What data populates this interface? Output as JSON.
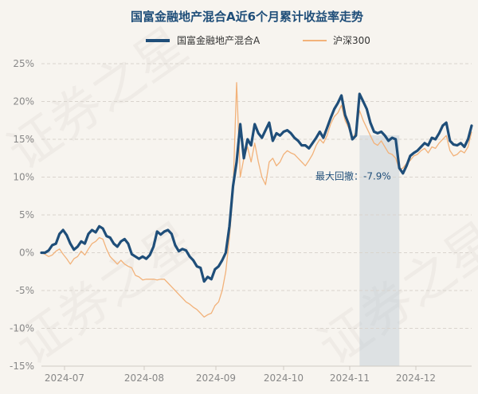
{
  "watermark": "证券之星",
  "chart_data": {
    "type": "line",
    "title": "国富金融地产混合A近6个月累计收益率走势",
    "xlabel": "",
    "ylabel": "",
    "x_ticks": [
      "2024-07",
      "2024-08",
      "2024-09",
      "2024-10",
      "2024-11",
      "2024-12"
    ],
    "y_ticks": [
      "25%",
      "20%",
      "15%",
      "10%",
      "5%",
      "0%",
      "-5%",
      "-10%",
      "-15%"
    ],
    "y_tick_values": [
      25,
      20,
      15,
      10,
      5,
      0,
      -5,
      -10,
      -15
    ],
    "ylim": [
      -15,
      25
    ],
    "grid": "horizontal-dashed",
    "legend_position": "top-center",
    "max_drawdown": {
      "label": "最大回撤：",
      "value_label": "-7.9%",
      "value": -7.9,
      "start_index": 88,
      "end_index": 99
    },
    "series": [
      {
        "name": "国富金融地产混合A",
        "color": "#1f4e79",
        "values": [
          0,
          0,
          0.3,
          1.0,
          1.2,
          2.5,
          3.0,
          2.3,
          1.2,
          0.4,
          0.8,
          1.5,
          1.2,
          2.5,
          3.0,
          2.7,
          3.5,
          3.2,
          2.2,
          2.0,
          1.2,
          0.8,
          1.5,
          1.8,
          1.2,
          -0.2,
          -0.5,
          -0.8,
          -0.5,
          -0.8,
          -0.3,
          0.8,
          2.8,
          2.4,
          2.8,
          3.0,
          2.5,
          1.0,
          0.2,
          0.5,
          0.3,
          -0.5,
          -1.0,
          -1.8,
          -2.0,
          -3.8,
          -3.2,
          -3.5,
          -2.2,
          -1.8,
          -1.0,
          0,
          3.5,
          8.8,
          12.0,
          17.0,
          12.5,
          15.0,
          14.2,
          17.0,
          15.8,
          15.2,
          16.2,
          17.2,
          14.8,
          15.8,
          15.5,
          16.0,
          16.2,
          15.8,
          15.2,
          14.8,
          14.2,
          14.2,
          13.8,
          14.5,
          15.2,
          16.0,
          15.2,
          16.5,
          17.8,
          19.0,
          19.8,
          20.8,
          18.2,
          17.0,
          15.0,
          15.5,
          21.0,
          20.0,
          19.0,
          17.2,
          16.0,
          15.8,
          16.0,
          15.5,
          14.8,
          15.2,
          15.0,
          11.2,
          10.5,
          11.5,
          12.8,
          13.2,
          13.5,
          14.0,
          14.5,
          14.2,
          15.2,
          15.0,
          15.8,
          16.8,
          17.2,
          14.8,
          14.3,
          14.2,
          14.5,
          14.0,
          15.0,
          16.8
        ]
      },
      {
        "name": "沪深300",
        "color": "#f2b27a",
        "values": [
          0,
          -0.2,
          -0.5,
          -0.3,
          0.2,
          0.5,
          -0.2,
          -0.8,
          -1.5,
          -0.8,
          -0.5,
          0.2,
          -0.3,
          0.5,
          1.2,
          1.5,
          2.0,
          1.8,
          0.5,
          -0.5,
          -1.0,
          -1.5,
          -1.0,
          -1.5,
          -1.8,
          -2.0,
          -3.0,
          -3.2,
          -3.6,
          -3.5,
          -3.5,
          -3.5,
          -3.6,
          -3.5,
          -3.5,
          -4.0,
          -4.5,
          -5.0,
          -5.5,
          -6.0,
          -6.5,
          -6.8,
          -7.2,
          -7.5,
          -8.0,
          -8.5,
          -8.2,
          -8.0,
          -7.0,
          -6.5,
          -5.0,
          -2.5,
          2.0,
          8.0,
          22.5,
          10.0,
          12.5,
          14.0,
          12.0,
          14.5,
          12.0,
          10.0,
          9.0,
          12.0,
          12.5,
          11.5,
          12.0,
          13.0,
          13.5,
          13.2,
          13.0,
          12.5,
          12.0,
          11.5,
          12.2,
          13.0,
          14.2,
          15.0,
          14.5,
          15.5,
          17.0,
          18.0,
          18.5,
          19.5,
          17.5,
          16.5,
          15.0,
          16.0,
          18.8,
          17.5,
          16.5,
          15.5,
          14.5,
          14.2,
          14.8,
          14.0,
          13.2,
          13.0,
          12.5,
          11.0,
          11.2,
          11.8,
          12.2,
          12.8,
          13.0,
          13.5,
          13.8,
          13.2,
          14.0,
          13.8,
          14.5,
          15.0,
          15.5,
          13.5,
          12.8,
          13.0,
          13.5,
          13.2,
          14.0,
          16.0
        ]
      }
    ]
  }
}
